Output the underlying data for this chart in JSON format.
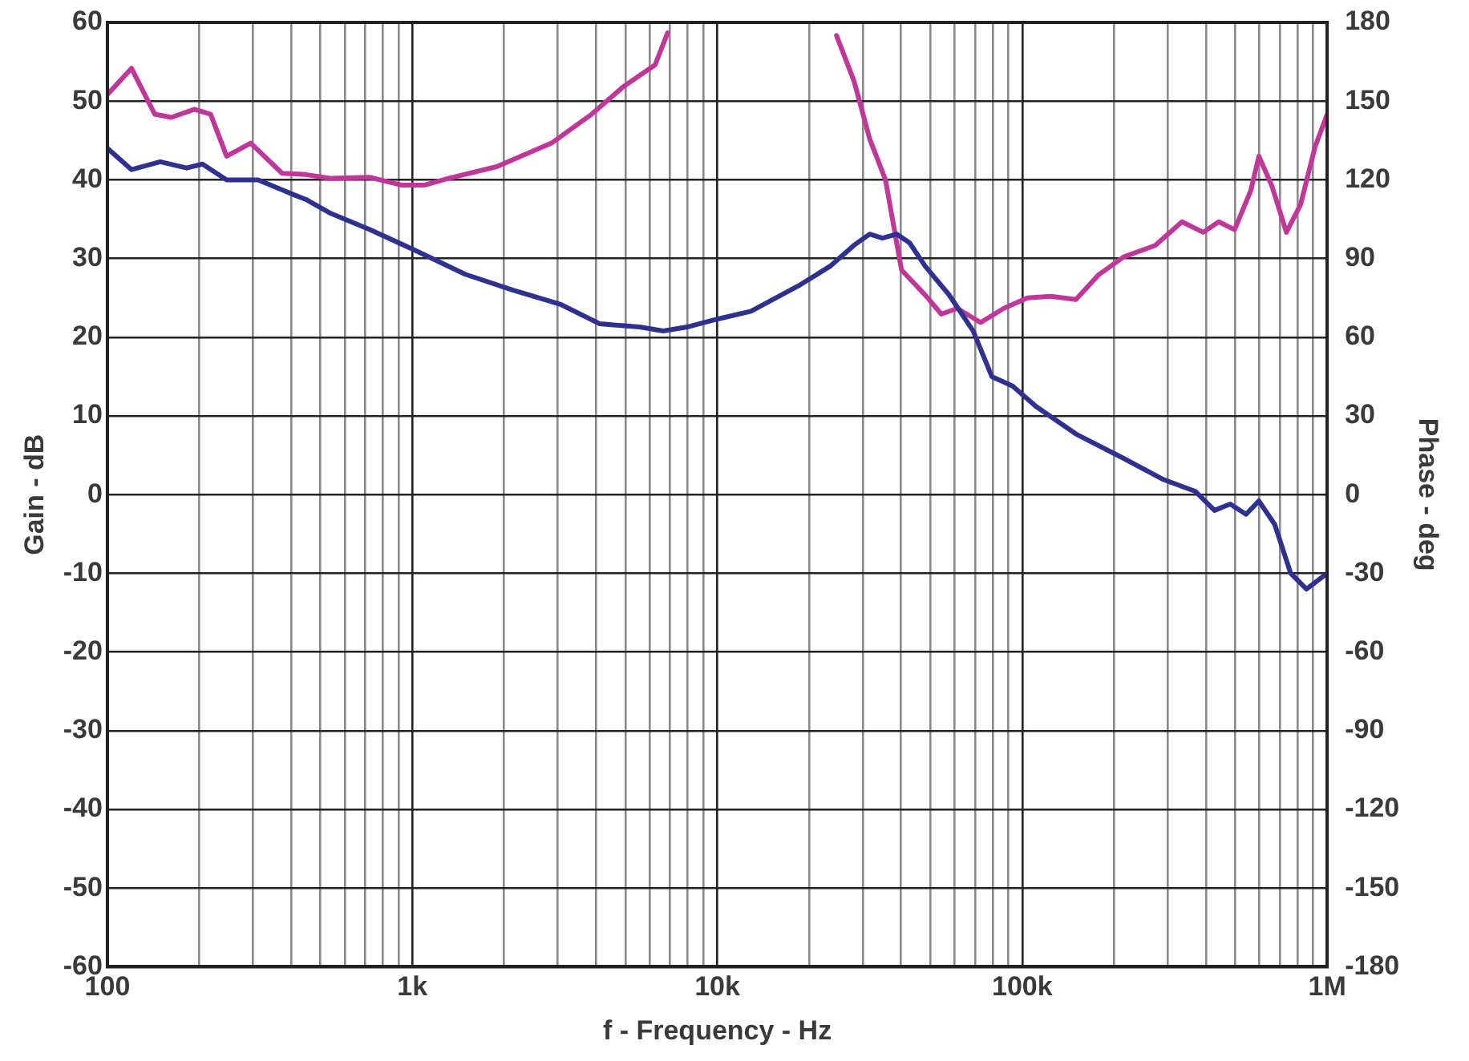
{
  "chart_data": {
    "type": "line",
    "xlabel": "f - Frequency - Hz",
    "ylabel": "Gain - dB",
    "y2label": "Phase - deg",
    "log": "x",
    "grid": true,
    "legend": false,
    "marker": "none",
    "line_style": "solid",
    "xlim": [
      100,
      1000000
    ],
    "xticks": [
      {
        "value": 100,
        "label": "100"
      },
      {
        "value": 200,
        "label": null
      },
      {
        "value": 300,
        "label": null
      },
      {
        "value": 400,
        "label": null
      },
      {
        "value": 500,
        "label": null
      },
      {
        "value": 600,
        "label": null
      },
      {
        "value": 700,
        "label": null
      },
      {
        "value": 800,
        "label": null
      },
      {
        "value": 900,
        "label": null
      },
      {
        "value": 1000,
        "label": "1k"
      },
      {
        "value": 2000,
        "label": null
      },
      {
        "value": 3000,
        "label": null
      },
      {
        "value": 4000,
        "label": null
      },
      {
        "value": 5000,
        "label": null
      },
      {
        "value": 6000,
        "label": null
      },
      {
        "value": 7000,
        "label": null
      },
      {
        "value": 8000,
        "label": null
      },
      {
        "value": 9000,
        "label": null
      },
      {
        "value": 10000,
        "label": "10k"
      },
      {
        "value": 20000,
        "label": null
      },
      {
        "value": 30000,
        "label": null
      },
      {
        "value": 40000,
        "label": null
      },
      {
        "value": 50000,
        "label": null
      },
      {
        "value": 60000,
        "label": null
      },
      {
        "value": 70000,
        "label": null
      },
      {
        "value": 80000,
        "label": null
      },
      {
        "value": 90000,
        "label": null
      },
      {
        "value": 100000,
        "label": "100k"
      },
      {
        "value": 200000,
        "label": null
      },
      {
        "value": 300000,
        "label": null
      },
      {
        "value": 400000,
        "label": null
      },
      {
        "value": 500000,
        "label": null
      },
      {
        "value": 600000,
        "label": null
      },
      {
        "value": 700000,
        "label": null
      },
      {
        "value": 800000,
        "label": null
      },
      {
        "value": 900000,
        "label": null
      },
      {
        "value": 1000000,
        "label": "1M"
      }
    ],
    "ylim": [
      -60,
      60
    ],
    "yticks": [
      -60,
      -50,
      -40,
      -30,
      -20,
      -10,
      0,
      10,
      20,
      30,
      40,
      50,
      60
    ],
    "y2lim": [
      -180,
      180
    ],
    "y2ticks": [
      -180,
      -150,
      -120,
      -90,
      -60,
      -30,
      0,
      30,
      60,
      90,
      120,
      150,
      180
    ],
    "series": [
      {
        "color": "#2e3192",
        "x": [
          100,
          120,
          149,
          182,
          205,
          246,
          312,
          397,
          448,
          536,
          723,
          1000,
          1490,
          2130,
          3050,
          4120,
          5560,
          6650,
          7960,
          10000,
          12900,
          18400,
          23400,
          28100,
          31600,
          34800,
          38800,
          42700,
          48100,
          57500,
          69000,
          79500,
          93000,
          111000,
          150000,
          215000,
          291000,
          370000,
          427000,
          481000,
          542000,
          597000,
          673000,
          759000,
          855000,
          1000000
        ],
        "values": [
          44,
          41.3,
          42.3,
          41.5,
          42,
          40,
          40,
          38.3,
          37.5,
          35.8,
          33.7,
          31.2,
          28,
          26,
          24.2,
          21.7,
          21.3,
          20.8,
          21.3,
          22.3,
          23.3,
          26.5,
          29,
          31.7,
          33.1,
          32.6,
          33.1,
          32,
          29,
          25.4,
          20.8,
          15,
          13.8,
          11.2,
          7.7,
          4.6,
          1.9,
          0.4,
          -2,
          -1.2,
          -2.5,
          -0.8,
          -3.8,
          -10,
          -12,
          -10
        ]
      },
      {
        "color": "#c2359a",
        "axis": "y2",
        "x": [
          100,
          120,
          143,
          162,
          193,
          218,
          246,
          295,
          374,
          448,
          536,
          723,
          919,
          1100,
          1320,
          1890,
          2860,
          3870,
          4930,
          6250,
          6870,
          15000,
          24600,
          28100,
          31600,
          35600,
          40200,
          48100,
          54300,
          61200,
          73000,
          87000,
          104000,
          124000,
          150000,
          178000,
          215000,
          273000,
          334000,
          392000,
          441000,
          497000,
          562000,
          597000,
          657000,
          735000,
          818000,
          912000,
          1000000
        ],
        "values": [
          152.5,
          162.5,
          145,
          143.8,
          146.9,
          145,
          129,
          134,
          122.5,
          122,
          120.6,
          121,
          118,
          118,
          120.6,
          125,
          134,
          145,
          155.6,
          163.8,
          176,
          null,
          175,
          157.5,
          135.6,
          120,
          85.6,
          76,
          68.8,
          71,
          65.6,
          71,
          75,
          75.6,
          74.4,
          83.8,
          90.6,
          95,
          104,
          100,
          104,
          101,
          116,
          129,
          118,
          100,
          110.6,
          132.5,
          145
        ]
      }
    ]
  }
}
